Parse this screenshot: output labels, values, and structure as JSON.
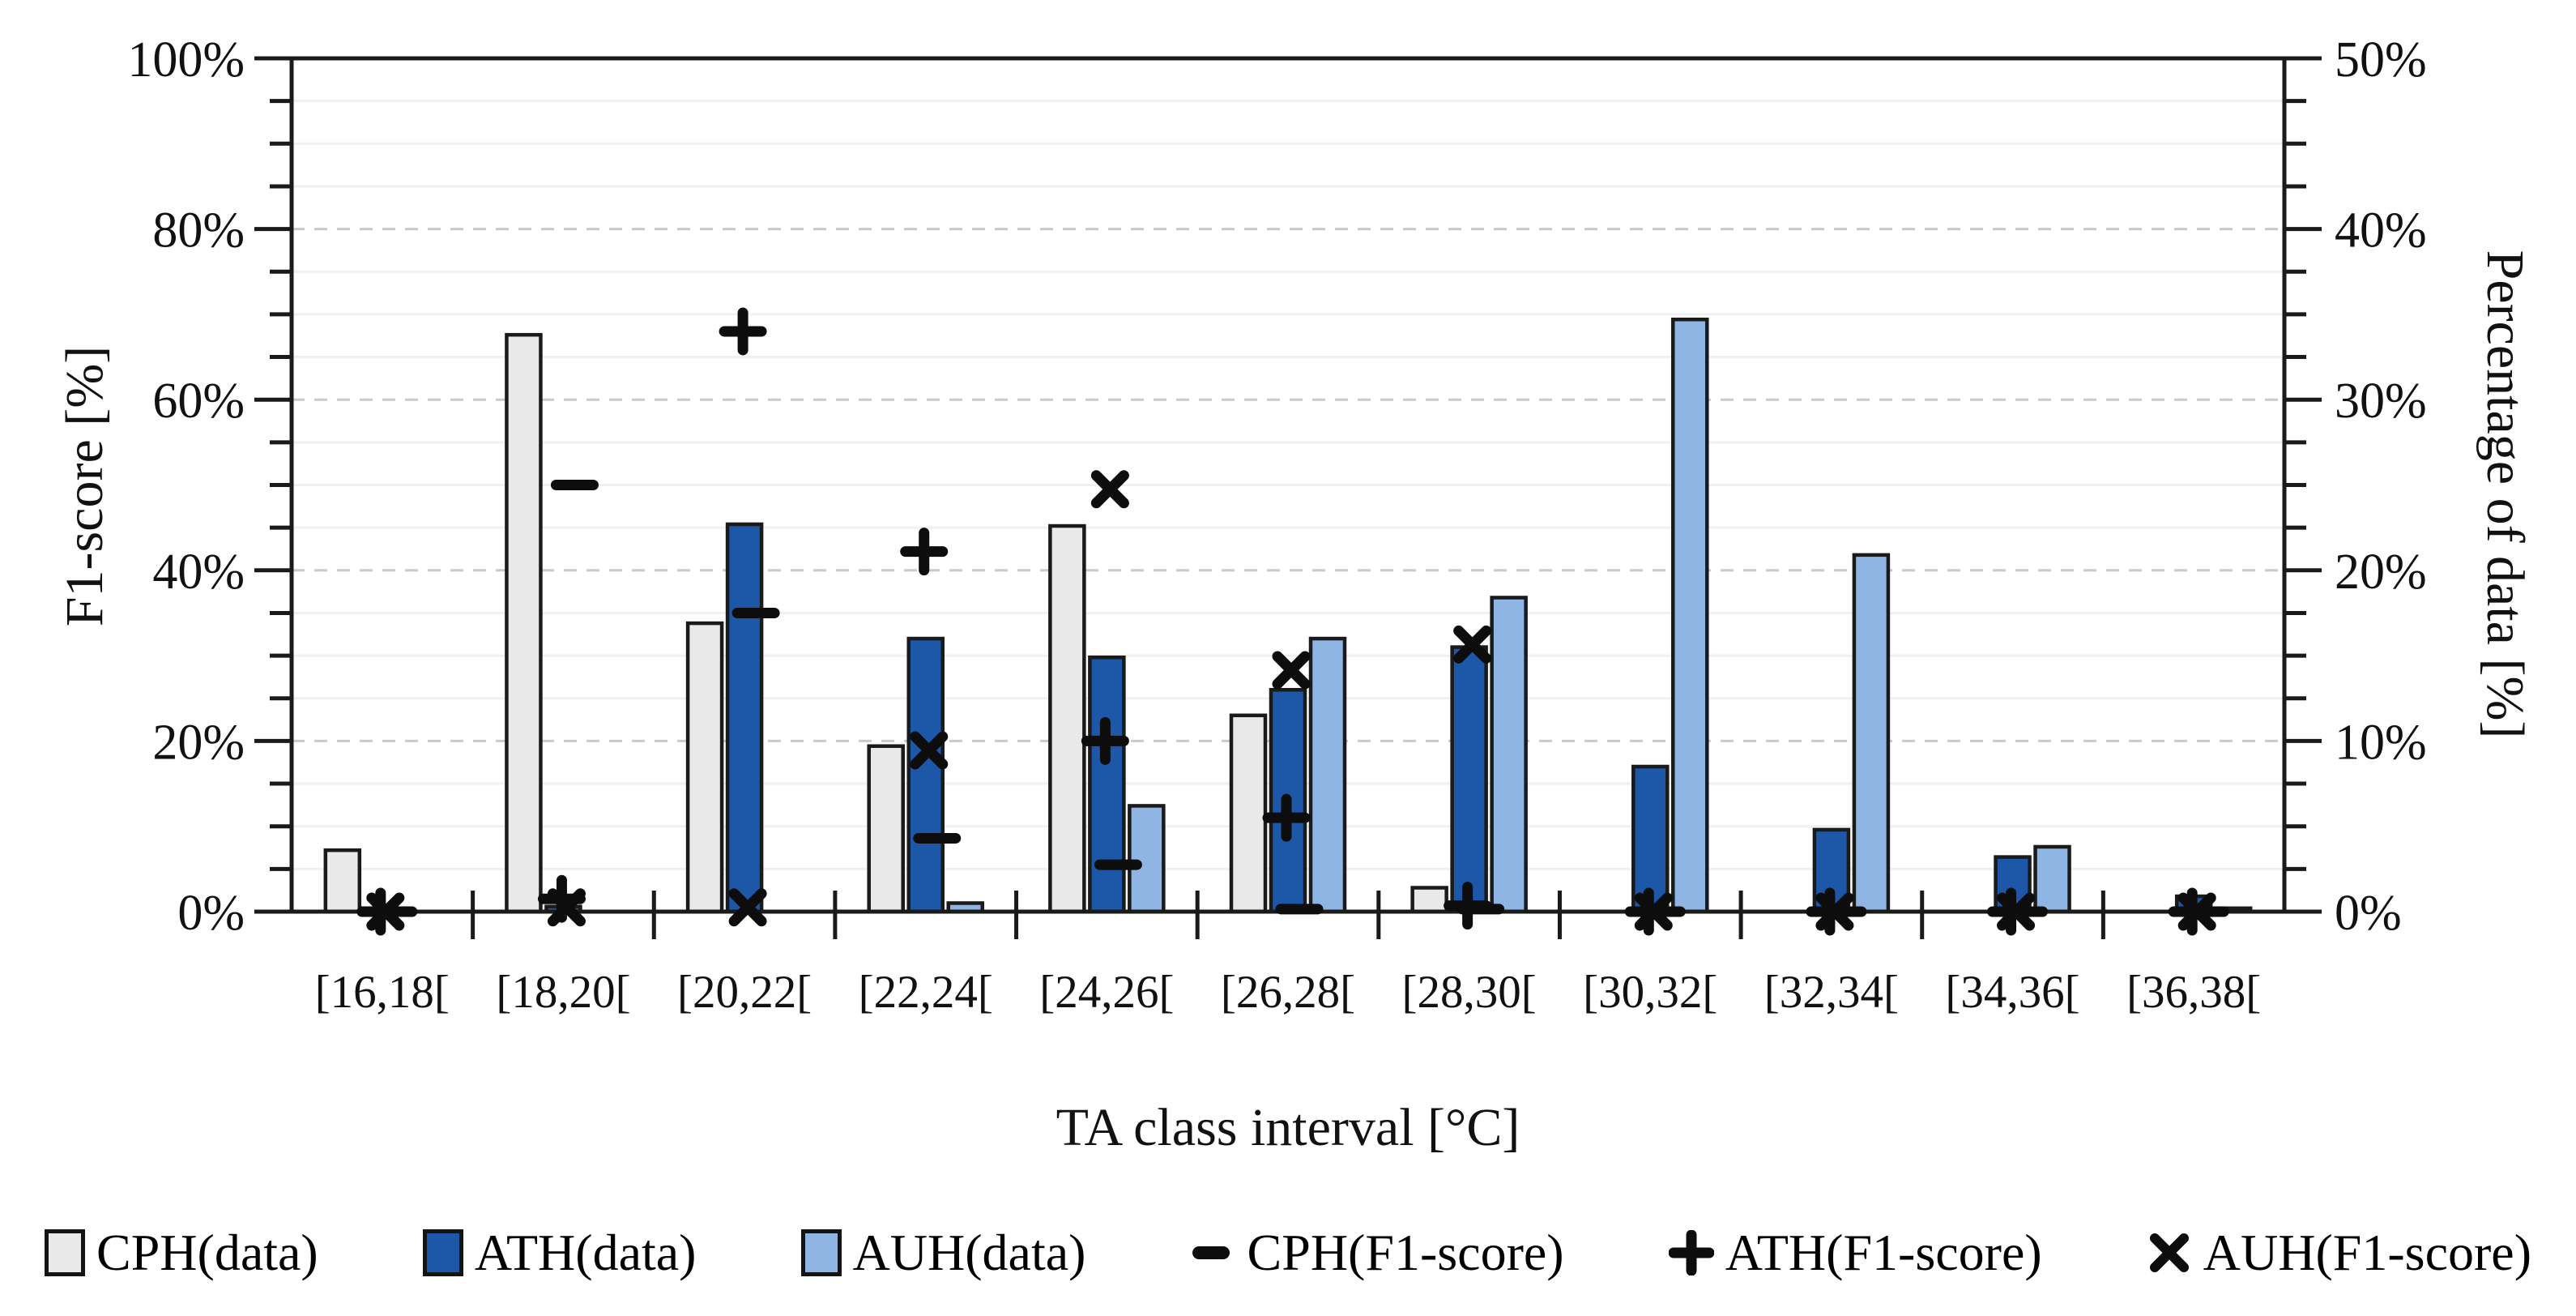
{
  "chart_data": {
    "type": "combo-bar-scatter",
    "categories": [
      "[16,18[",
      "[18,20[",
      "[20,22[",
      "[22,24[",
      "[24,26[",
      "[26,28[",
      "[28,30[",
      "[30,32[",
      "[32,34[",
      "[34,36[",
      "[36,38["
    ],
    "x_axis": {
      "title": "TA class interval [°C]"
    },
    "left_axis": {
      "title": "F1-score [%]",
      "min": 0,
      "max": 100,
      "tick_step": 20,
      "minor_tick_step": 5,
      "tick_values": [
        0,
        20,
        40,
        60,
        80,
        100
      ],
      "tick_labels": [
        "0%",
        "20%",
        "40%",
        "60%",
        "80%",
        "100%"
      ]
    },
    "right_axis": {
      "title": "Percentage of data [%]",
      "min": 0,
      "max": 50,
      "tick_step": 10,
      "minor_tick_step": 2.5,
      "tick_values": [
        0,
        10,
        20,
        30,
        40,
        50
      ],
      "tick_labels": [
        "0%",
        "10%",
        "20%",
        "30%",
        "40%",
        "50%"
      ]
    },
    "bar_series": [
      {
        "name": "CPH(data)",
        "axis": "right",
        "swatch": "bar",
        "color": "#e9e9e9",
        "values": [
          3.6,
          33.8,
          16.9,
          9.7,
          22.6,
          11.5,
          1.4,
          0,
          0,
          0,
          0
        ]
      },
      {
        "name": "ATH(data)",
        "axis": "right",
        "swatch": "bar",
        "color": "#1d57a8",
        "values": [
          0,
          0.3,
          22.7,
          16.0,
          14.9,
          13.0,
          15.5,
          8.5,
          4.8,
          3.2,
          0.9
        ]
      },
      {
        "name": "AUH(data)",
        "axis": "right",
        "swatch": "bar",
        "color": "#8fb5e5",
        "values": [
          0,
          0,
          0,
          0.5,
          6.2,
          16.0,
          18.4,
          34.7,
          20.9,
          3.8,
          0.2
        ]
      }
    ],
    "marker_series": [
      {
        "name": "CPH(F1-score)",
        "axis": "left",
        "marker": "dash",
        "values": [
          0,
          50,
          35,
          8.6,
          5.5,
          0.3,
          0.3,
          0,
          0,
          0,
          0
        ]
      },
      {
        "name": "ATH(F1-score)",
        "axis": "left",
        "marker": "plus",
        "values": [
          0,
          1.5,
          68,
          42.2,
          20,
          11,
          0.7,
          0,
          0,
          0,
          0
        ]
      },
      {
        "name": "AUH(F1-score)",
        "axis": "left",
        "marker": "cross",
        "values": [
          0,
          0.5,
          0.5,
          18.9,
          49.5,
          28.3,
          31.3,
          0,
          0,
          0,
          0
        ]
      }
    ],
    "grid": {
      "minor_color": "#f0f0f0",
      "major_color": "#c9c9c9",
      "major_dashed": true
    },
    "colors": {
      "axis": "#1a1a1a",
      "bar_border": "#1a1a1a",
      "marker": "#0d0d0d",
      "background": "#ffffff"
    }
  }
}
